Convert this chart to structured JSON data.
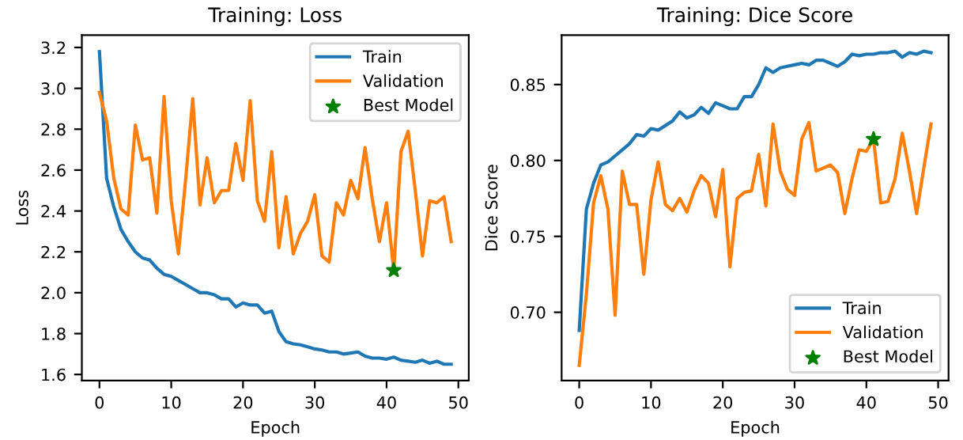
{
  "chart_data": [
    {
      "type": "line",
      "title": "Training: Loss",
      "xlabel": "Epoch",
      "ylabel": "Loss",
      "x": [
        0,
        1,
        2,
        3,
        4,
        5,
        6,
        7,
        8,
        9,
        10,
        11,
        12,
        13,
        14,
        15,
        16,
        17,
        18,
        19,
        20,
        21,
        22,
        23,
        24,
        25,
        26,
        27,
        28,
        29,
        30,
        31,
        32,
        33,
        34,
        35,
        36,
        37,
        38,
        39,
        40,
        41,
        42,
        43,
        44,
        45,
        46,
        47,
        48,
        49
      ],
      "series": [
        {
          "name": "Train",
          "color": "#1f77b4",
          "values": [
            3.18,
            2.56,
            2.42,
            2.31,
            2.25,
            2.2,
            2.17,
            2.16,
            2.12,
            2.09,
            2.08,
            2.06,
            2.04,
            2.02,
            2.0,
            2.0,
            1.99,
            1.97,
            1.97,
            1.93,
            1.95,
            1.94,
            1.94,
            1.9,
            1.91,
            1.81,
            1.76,
            1.75,
            1.745,
            1.735,
            1.725,
            1.72,
            1.71,
            1.71,
            1.7,
            1.705,
            1.71,
            1.69,
            1.68,
            1.68,
            1.675,
            1.685,
            1.67,
            1.665,
            1.66,
            1.67,
            1.655,
            1.665,
            1.65,
            1.65
          ]
        },
        {
          "name": "Validation",
          "color": "#ff7f0e",
          "values": [
            2.98,
            2.84,
            2.56,
            2.41,
            2.38,
            2.82,
            2.65,
            2.66,
            2.39,
            2.96,
            2.45,
            2.19,
            2.55,
            2.95,
            2.43,
            2.66,
            2.44,
            2.5,
            2.5,
            2.73,
            2.55,
            2.94,
            2.45,
            2.35,
            2.69,
            2.22,
            2.47,
            2.19,
            2.29,
            2.35,
            2.48,
            2.18,
            2.15,
            2.44,
            2.38,
            2.55,
            2.46,
            2.71,
            2.46,
            2.25,
            2.44,
            2.11,
            2.69,
            2.79,
            2.5,
            2.18,
            2.45,
            2.44,
            2.47,
            2.25
          ]
        },
        {
          "name": "Best Model",
          "type": "scatter",
          "marker": "star",
          "color": "#008000",
          "x": [
            41
          ],
          "values": [
            2.11
          ]
        }
      ],
      "xlim": [
        -2.45,
        51.45
      ],
      "xticks": [
        0,
        10,
        20,
        30,
        40,
        50
      ],
      "ylim": [
        1.57,
        3.26
      ],
      "yticks": [
        1.6,
        1.8,
        {
          "value": 2,
          "label": "2.0"
        },
        2.2,
        2.4,
        2.6,
        2.8,
        {
          "value": 3,
          "label": "3.0"
        },
        3.2
      ],
      "legend": "top right"
    },
    {
      "type": "line",
      "title": "Training: Dice Score",
      "xlabel": "Epoch",
      "ylabel": "Dice Score",
      "x": [
        0,
        1,
        2,
        3,
        4,
        5,
        6,
        7,
        8,
        9,
        10,
        11,
        12,
        13,
        14,
        15,
        16,
        17,
        18,
        19,
        20,
        21,
        22,
        23,
        24,
        25,
        26,
        27,
        28,
        29,
        30,
        31,
        32,
        33,
        34,
        35,
        36,
        37,
        38,
        39,
        40,
        41,
        42,
        43,
        44,
        45,
        46,
        47,
        48,
        49
      ],
      "series": [
        {
          "name": "Train",
          "color": "#1f77b4",
          "values": [
            0.688,
            0.768,
            0.785,
            0.797,
            0.799,
            0.803,
            0.807,
            0.811,
            0.817,
            0.816,
            0.821,
            0.82,
            0.823,
            0.826,
            0.832,
            0.828,
            0.83,
            0.835,
            0.831,
            0.838,
            0.836,
            0.834,
            0.834,
            0.842,
            0.842,
            0.85,
            0.861,
            0.858,
            0.861,
            0.862,
            0.863,
            0.864,
            0.863,
            0.866,
            0.866,
            0.864,
            0.862,
            0.865,
            0.87,
            0.869,
            0.87,
            0.87,
            0.871,
            0.871,
            0.872,
            0.868,
            0.871,
            0.87,
            0.872,
            0.871
          ]
        },
        {
          "name": "Validation",
          "color": "#ff7f0e",
          "values": [
            0.665,
            0.712,
            0.772,
            0.79,
            0.768,
            0.698,
            0.793,
            0.771,
            0.771,
            0.725,
            0.774,
            0.799,
            0.771,
            0.767,
            0.775,
            0.766,
            0.78,
            0.79,
            0.785,
            0.763,
            0.794,
            0.73,
            0.775,
            0.779,
            0.78,
            0.804,
            0.77,
            0.824,
            0.793,
            0.781,
            0.777,
            0.814,
            0.825,
            0.793,
            0.795,
            0.797,
            0.792,
            0.765,
            0.788,
            0.807,
            0.806,
            0.814,
            0.772,
            0.773,
            0.788,
            0.818,
            0.793,
            0.765,
            0.795,
            0.824
          ]
        },
        {
          "name": "Best Model",
          "type": "scatter",
          "marker": "star",
          "color": "#008000",
          "x": [
            41
          ],
          "values": [
            0.814
          ]
        }
      ],
      "xlim": [
        -2.45,
        51.45
      ],
      "xticks": [
        0,
        10,
        20,
        30,
        40,
        50
      ],
      "ylim": [
        0.655,
        0.8825
      ],
      "yticks": [
        {
          "value": 0.7,
          "label": "0.70"
        },
        0.75,
        {
          "value": 0.8,
          "label": "0.80"
        },
        0.85
      ],
      "legend": "bottom right"
    }
  ]
}
